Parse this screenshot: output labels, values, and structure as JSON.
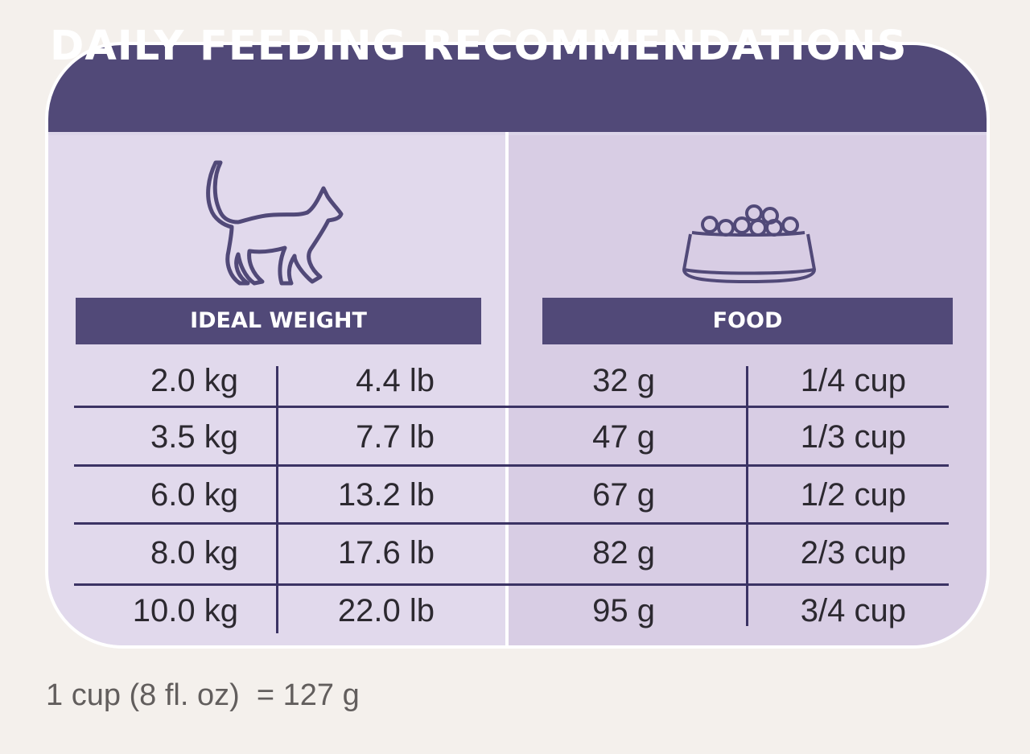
{
  "title": "DAILY FEEDING RECOMMENDATIONS",
  "sections": {
    "weight_label": "IDEAL WEIGHT",
    "food_label": "FOOD"
  },
  "icons": {
    "weight": "cat-icon",
    "food": "food-bowl-icon"
  },
  "rows": [
    {
      "kg": "2.0 kg",
      "lb": "4.4 lb",
      "grams": "32 g",
      "cups": "1/4 cup"
    },
    {
      "kg": "3.5 kg",
      "lb": "7.7 lb",
      "grams": "47 g",
      "cups": "1/3 cup"
    },
    {
      "kg": "6.0 kg",
      "lb": "13.2 lb",
      "grams": "67 g",
      "cups": "1/2 cup"
    },
    {
      "kg": "8.0 kg",
      "lb": "17.6 lb",
      "grams": "82 g",
      "cups": "2/3 cup"
    },
    {
      "kg": "10.0 kg",
      "lb": "22.0 lb",
      "grams": "95 g",
      "cups": "3/4 cup"
    }
  ],
  "footnote": "1 cup (8 fl. oz)  = 127 g",
  "colors": {
    "header": "#514978",
    "panel_left": "#e1d9ec",
    "panel_right": "#d8cde4",
    "page_background": "#f4f0ec",
    "grid_lines": "#3b3364",
    "text": "#2c2930"
  }
}
